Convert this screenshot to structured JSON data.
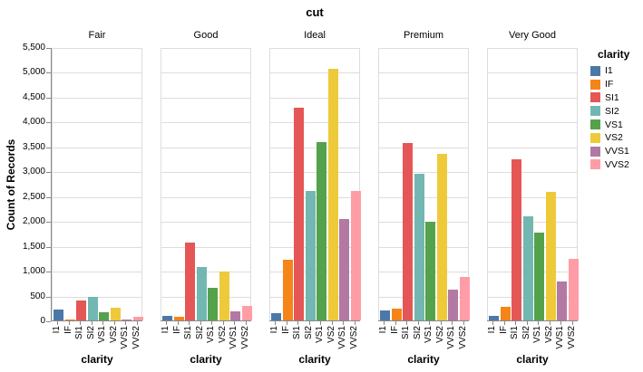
{
  "chart_data": {
    "type": "bar",
    "title": "cut",
    "facet_field": "cut",
    "xlabel": "clarity",
    "ylabel": "Count of Records",
    "ylim": [
      0,
      5500
    ],
    "ytick_step": 500,
    "grid": true,
    "legend_position": "right",
    "legend_title": "clarity",
    "categories": [
      "I1",
      "IF",
      "SI1",
      "SI2",
      "VS1",
      "VS2",
      "VVS1",
      "VVS2"
    ],
    "colors": [
      "#4c78a8",
      "#f58518",
      "#e45756",
      "#72b7b2",
      "#54a24b",
      "#eeca3b",
      "#b279a2",
      "#ff9da6"
    ],
    "facets": [
      {
        "label": "Fair",
        "values": [
          210,
          9,
          408,
          466,
          170,
          261,
          17,
          69
        ]
      },
      {
        "label": "Good",
        "values": [
          96,
          71,
          1560,
          1081,
          648,
          978,
          186,
          286
        ]
      },
      {
        "label": "Ideal",
        "values": [
          146,
          1212,
          4282,
          2598,
          3589,
          5071,
          2047,
          2606
        ]
      },
      {
        "label": "Premium",
        "values": [
          205,
          230,
          3575,
          2949,
          1989,
          3357,
          616,
          870
        ]
      },
      {
        "label": "Very Good",
        "values": [
          84,
          268,
          3240,
          2100,
          1775,
          2591,
          789,
          1235
        ]
      }
    ]
  }
}
